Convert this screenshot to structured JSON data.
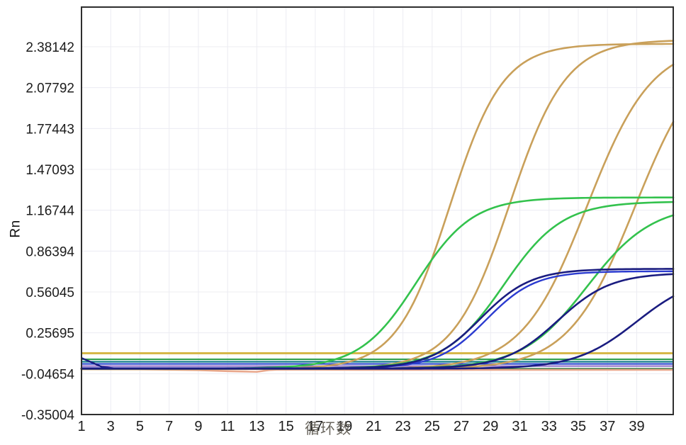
{
  "chart_data": {
    "type": "line",
    "title": "",
    "xlabel": "循环数",
    "ylabel": "Rn",
    "x_range": [
      1,
      41.5
    ],
    "y_range": [
      -0.35004,
      2.676
    ],
    "x_ticks": [
      1,
      3,
      5,
      7,
      9,
      11,
      13,
      15,
      17,
      19,
      21,
      23,
      25,
      27,
      29,
      31,
      33,
      35,
      37,
      39
    ],
    "y_ticks": [
      2.38142,
      2.07792,
      1.77443,
      1.47093,
      1.16744,
      0.86394,
      0.56045,
      0.25695,
      -0.04654,
      -0.35004
    ],
    "grid": true,
    "legend": "none",
    "grid_color": "#ececf2",
    "border_color": "#2e2e2e",
    "threshold_lines": [
      {
        "name": "threshold-gold",
        "value": 0.105,
        "color": "#d6b84a",
        "width": 3
      },
      {
        "name": "threshold-green",
        "value": 0.06,
        "color": "#2f9e50",
        "width": 2.2
      },
      {
        "name": "threshold-teal",
        "value": 0.042,
        "color": "#187f8b",
        "width": 2.2
      },
      {
        "name": "threshold-blue",
        "value": 0.026,
        "color": "#2c49cf",
        "width": 2.2
      }
    ],
    "baselines": [
      {
        "name": "baseline-purple",
        "color": "#8f6cc4",
        "width": 2,
        "points": [
          [
            1,
            0.01
          ],
          [
            41.5,
            0.01
          ]
        ]
      },
      {
        "name": "baseline-darkgreen",
        "color": "#1e6f35",
        "width": 2,
        "points": [
          [
            1,
            -0.01
          ],
          [
            41.5,
            -0.01
          ]
        ]
      },
      {
        "name": "baseline-navy-start",
        "color": "#1a1c80",
        "width": 2.4,
        "points": [
          [
            1,
            0.07
          ],
          [
            1.6,
            0.042
          ],
          [
            2.4,
            0.004
          ],
          [
            3.5,
            -0.01
          ],
          [
            6,
            -0.012
          ]
        ]
      },
      {
        "name": "baseline-salmon",
        "color": "#e9a88d",
        "width": 2.6,
        "points": [
          [
            1,
            -0.012
          ],
          [
            5,
            -0.014
          ],
          [
            9,
            -0.02
          ],
          [
            11,
            -0.028
          ],
          [
            13,
            -0.033
          ],
          [
            13.8,
            -0.02
          ],
          [
            14.5,
            -0.016
          ],
          [
            20,
            -0.018
          ],
          [
            41.5,
            -0.018
          ]
        ]
      }
    ],
    "series": [
      {
        "name": "orange-curve-1",
        "color": "#c9a05a",
        "width": 2.6,
        "sigmoid": {
          "base": -0.012,
          "amplitude": 2.415,
          "midpoint": 26.2,
          "slope": 0.55
        }
      },
      {
        "name": "orange-curve-2",
        "color": "#c9a05a",
        "width": 2.6,
        "sigmoid": {
          "base": -0.012,
          "amplitude": 2.445,
          "midpoint": 30.3,
          "slope": 0.52
        }
      },
      {
        "name": "orange-curve-3",
        "color": "#c9a05a",
        "width": 2.6,
        "sigmoid": {
          "base": -0.012,
          "amplitude": 2.42,
          "midpoint": 35.6,
          "slope": 0.45
        }
      },
      {
        "name": "orange-curve-4",
        "color": "#c9a05a",
        "width": 2.6,
        "sigmoid": {
          "base": -0.012,
          "amplitude": 2.42,
          "midpoint": 38.9,
          "slope": 0.44
        }
      },
      {
        "name": "green-curve-1",
        "color": "#33c24d",
        "width": 2.6,
        "sigmoid": {
          "base": -0.008,
          "amplitude": 1.27,
          "midpoint": 23.9,
          "slope": 0.52
        }
      },
      {
        "name": "green-curve-2",
        "color": "#33c24d",
        "width": 2.6,
        "sigmoid": {
          "base": -0.008,
          "amplitude": 1.24,
          "midpoint": 29.9,
          "slope": 0.5
        }
      },
      {
        "name": "green-curve-3",
        "color": "#33c24d",
        "width": 2.6,
        "sigmoid": {
          "base": -0.01,
          "amplitude": 1.22,
          "midpoint": 35.6,
          "slope": 0.45
        }
      },
      {
        "name": "blue-curve-1",
        "color": "#2b3bd0",
        "width": 2.4,
        "sigmoid": {
          "base": -0.006,
          "amplitude": 0.72,
          "midpoint": 28.7,
          "slope": 0.6
        }
      },
      {
        "name": "navy-curve-1",
        "color": "#1a1c80",
        "width": 2.6,
        "sigmoid": {
          "base": -0.008,
          "amplitude": 0.74,
          "midpoint": 28.3,
          "slope": 0.58
        }
      },
      {
        "name": "navy-curve-2",
        "color": "#1a1c80",
        "width": 2.6,
        "sigmoid": {
          "base": -0.008,
          "amplitude": 0.71,
          "midpoint": 33.6,
          "slope": 0.55
        }
      },
      {
        "name": "navy-curve-3",
        "color": "#1a1c80",
        "width": 2.6,
        "sigmoid": {
          "base": -0.01,
          "amplitude": 0.7,
          "midpoint": 39.0,
          "slope": 0.48
        }
      }
    ]
  }
}
